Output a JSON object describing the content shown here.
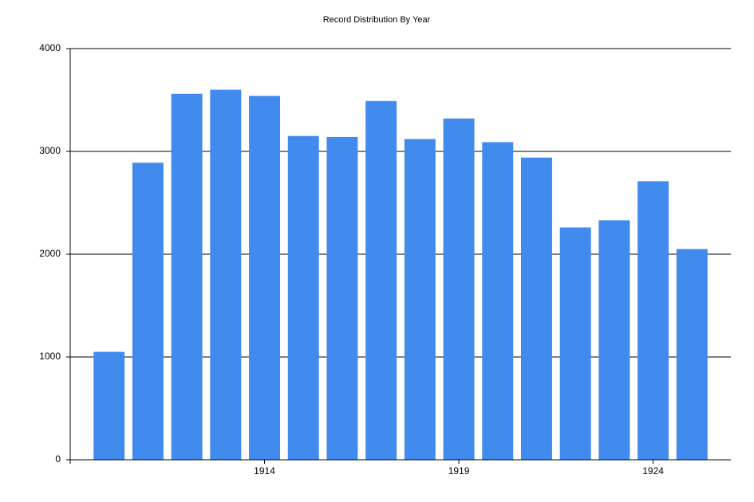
{
  "chart_data": {
    "type": "bar",
    "title": "Record Distribution By Year",
    "x": [
      1910,
      1911,
      1912,
      1913,
      1914,
      1915,
      1916,
      1917,
      1918,
      1919,
      1920,
      1921,
      1922,
      1923,
      1924,
      1925
    ],
    "values": [
      1050,
      2890,
      3560,
      3600,
      3540,
      3150,
      3140,
      3490,
      3120,
      3320,
      3090,
      2940,
      2260,
      2330,
      2710,
      2050
    ],
    "color": "#418bee",
    "xlim": [
      1909,
      1926
    ],
    "xticks": [
      1914,
      1919,
      1924
    ],
    "ylim": [
      0,
      4000
    ],
    "yticks": [
      0,
      1000,
      2000,
      3000,
      4000
    ],
    "grid": true
  }
}
